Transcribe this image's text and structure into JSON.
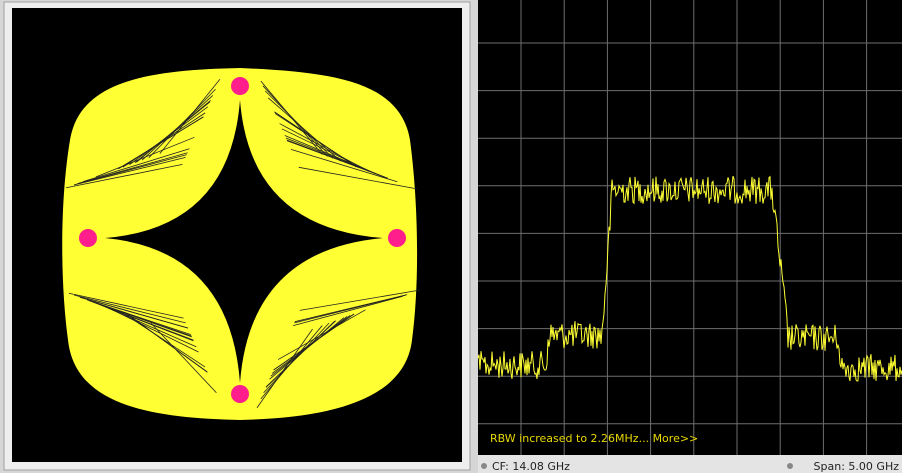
{
  "status_message": "RBW increased to 2.26MHz... More>>",
  "footer": {
    "center_frequency": "CF: 14.08 GHz",
    "span": "Span: 5.00 GHz"
  }
}
